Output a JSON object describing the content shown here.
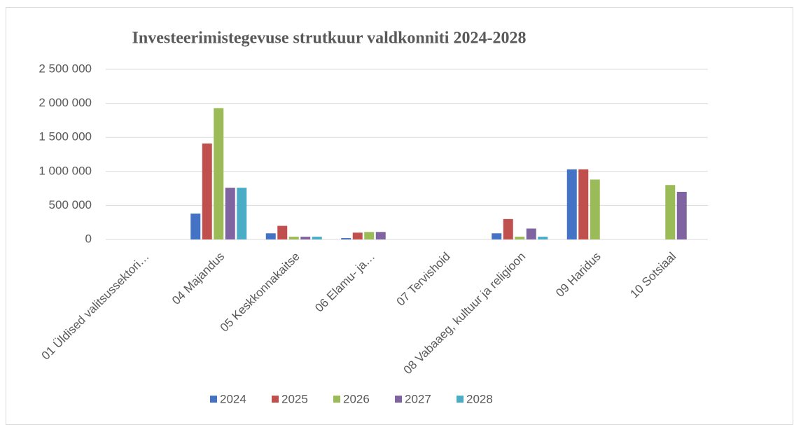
{
  "chart_data": {
    "type": "bar",
    "title": "Investeerimistegevuse strutkuur valdkonniti  2024-2028",
    "categories": [
      "01 Üldised valitsussektori…",
      "04 Majandus",
      "05 Keskkonnakaitse",
      "06 Elamu- ja…",
      "07 Tervishoid",
      "08 Vabaaeg, kultuur ja religioon",
      "09 Haridus",
      "10 Sotsiaal"
    ],
    "series": [
      {
        "name": "2024",
        "color": "#4472c4",
        "values": [
          0,
          380000,
          90000,
          20000,
          0,
          90000,
          1030000,
          0
        ]
      },
      {
        "name": "2025",
        "color": "#c0504d",
        "values": [
          0,
          1410000,
          200000,
          100000,
          0,
          300000,
          1030000,
          0
        ]
      },
      {
        "name": "2026",
        "color": "#9bbb59",
        "values": [
          0,
          1930000,
          40000,
          110000,
          0,
          40000,
          880000,
          800000
        ]
      },
      {
        "name": "2027",
        "color": "#8064a2",
        "values": [
          0,
          760000,
          40000,
          110000,
          0,
          160000,
          0,
          700000
        ]
      },
      {
        "name": "2028",
        "color": "#4bacc6",
        "values": [
          0,
          760000,
          40000,
          0,
          0,
          40000,
          0,
          0
        ]
      }
    ],
    "ylim": [
      0,
      2500000
    ],
    "yticks": [
      0,
      {
        "value": 500000,
        "label": "500 000"
      },
      {
        "value": 1000000,
        "label": "1 000 000"
      },
      {
        "value": 1500000,
        "label": "1 500 000"
      },
      {
        "value": 2000000,
        "label": "2 000 000"
      },
      {
        "value": 2500000,
        "label": "2 500 000"
      }
    ],
    "grid": true,
    "legend": "bottom"
  }
}
